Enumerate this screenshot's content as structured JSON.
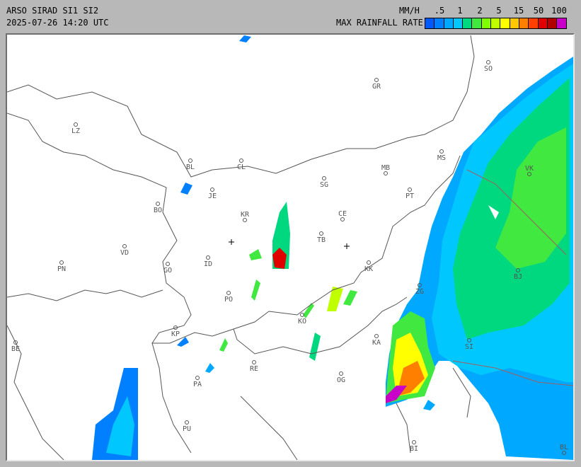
{
  "header": {
    "title": "ARSO SIRAD SI1 SI2",
    "timestamp": "2025-07-26 14:20 UTC",
    "unit": "MM/H",
    "legend_title": "MAX RAINFALL RATE"
  },
  "legend": {
    "ticks": [
      ".5",
      "1",
      "2",
      "5",
      "15",
      "50",
      "100"
    ],
    "colors": [
      "#0058ff",
      "#0080ff",
      "#00a8ff",
      "#00c8ff",
      "#00d880",
      "#40e840",
      "#80ff00",
      "#c0ff00",
      "#ffff00",
      "#ffc800",
      "#ff8000",
      "#ff4000",
      "#e00000",
      "#b00000",
      "#c800c8"
    ]
  },
  "map": {
    "border_color": "#6a6a6a",
    "cities": [
      {
        "code": "SO"
      },
      {
        "code": "GR"
      },
      {
        "code": "LZ"
      },
      {
        "code": "MS"
      },
      {
        "code": "BL"
      },
      {
        "code": "CL"
      },
      {
        "code": "MB"
      },
      {
        "code": "VK"
      },
      {
        "code": "JE"
      },
      {
        "code": "SG"
      },
      {
        "code": "PT"
      },
      {
        "code": "BO"
      },
      {
        "code": "KR"
      },
      {
        "code": "CE"
      },
      {
        "code": "TB"
      },
      {
        "code": "VD"
      },
      {
        "code": "ID"
      },
      {
        "code": "PN"
      },
      {
        "code": "GO"
      },
      {
        "code": "KK"
      },
      {
        "code": "BJ"
      },
      {
        "code": "ZG"
      },
      {
        "code": "PO"
      },
      {
        "code": "KO"
      },
      {
        "code": "KP"
      },
      {
        "code": "KA"
      },
      {
        "code": "SI"
      },
      {
        "code": "BE"
      },
      {
        "code": "RE"
      },
      {
        "code": "OG"
      },
      {
        "code": "PA"
      },
      {
        "code": "PU"
      },
      {
        "code": "BI"
      },
      {
        "code": "BL"
      }
    ]
  }
}
